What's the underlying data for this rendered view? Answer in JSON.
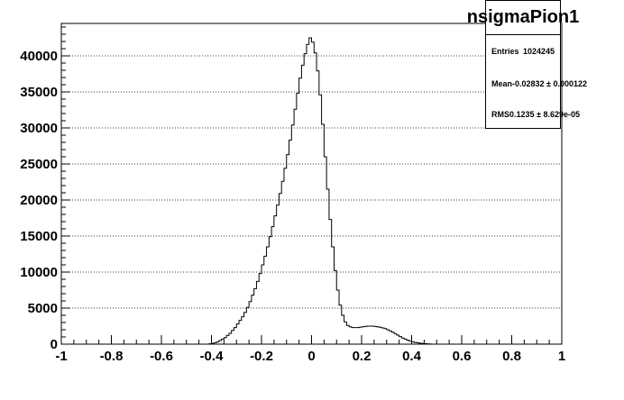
{
  "chart_data": {
    "type": "histogram",
    "title": "nsigmaPion1",
    "xlim": [
      -1,
      1
    ],
    "ylim": [
      0,
      44500
    ],
    "x_ticks": [
      "-1",
      "-0.8",
      "-0.6",
      "-0.4",
      "-0.2",
      "0",
      "0.2",
      "0.4",
      "0.6",
      "0.8",
      "1"
    ],
    "y_ticks": [
      "0",
      "5000",
      "10000",
      "15000",
      "20000",
      "25000",
      "30000",
      "35000",
      "40000"
    ],
    "grid": "horizontal dotted",
    "bin_width": 0.01,
    "bins": [
      [
        -0.41,
        40
      ],
      [
        -0.4,
        100
      ],
      [
        -0.39,
        200
      ],
      [
        -0.38,
        300
      ],
      [
        -0.37,
        500
      ],
      [
        -0.36,
        700
      ],
      [
        -0.35,
        900
      ],
      [
        -0.34,
        1200
      ],
      [
        -0.33,
        1500
      ],
      [
        -0.32,
        1900
      ],
      [
        -0.31,
        2300
      ],
      [
        -0.3,
        2800
      ],
      [
        -0.29,
        3300
      ],
      [
        -0.28,
        3800
      ],
      [
        -0.27,
        4400
      ],
      [
        -0.26,
        5100
      ],
      [
        -0.25,
        5900
      ],
      [
        -0.24,
        6800
      ],
      [
        -0.23,
        7700
      ],
      [
        -0.22,
        8700
      ],
      [
        -0.21,
        9800
      ],
      [
        -0.2,
        11000
      ],
      [
        -0.19,
        12200
      ],
      [
        -0.18,
        13500
      ],
      [
        -0.17,
        14900
      ],
      [
        -0.16,
        16300
      ],
      [
        -0.15,
        17800
      ],
      [
        -0.14,
        19300
      ],
      [
        -0.13,
        20900
      ],
      [
        -0.12,
        22600
      ],
      [
        -0.11,
        24400
      ],
      [
        -0.1,
        26300
      ],
      [
        -0.09,
        28300
      ],
      [
        -0.08,
        30400
      ],
      [
        -0.07,
        32600
      ],
      [
        -0.06,
        34800
      ],
      [
        -0.05,
        36900
      ],
      [
        -0.04,
        38700
      ],
      [
        -0.03,
        40300
      ],
      [
        -0.02,
        41600
      ],
      [
        -0.01,
        42500
      ],
      [
        0.0,
        41900
      ],
      [
        0.01,
        40400
      ],
      [
        0.02,
        37900
      ],
      [
        0.03,
        34600
      ],
      [
        0.04,
        30500
      ],
      [
        0.05,
        26000
      ],
      [
        0.06,
        21500
      ],
      [
        0.07,
        17300
      ],
      [
        0.08,
        13500
      ],
      [
        0.09,
        10200
      ],
      [
        0.1,
        7500
      ],
      [
        0.11,
        5400
      ],
      [
        0.12,
        4000
      ],
      [
        0.13,
        3100
      ],
      [
        0.14,
        2600
      ],
      [
        0.15,
        2400
      ],
      [
        0.16,
        2300
      ],
      [
        0.17,
        2300
      ],
      [
        0.18,
        2300
      ],
      [
        0.19,
        2350
      ],
      [
        0.2,
        2400
      ],
      [
        0.21,
        2450
      ],
      [
        0.22,
        2500
      ],
      [
        0.23,
        2500
      ],
      [
        0.24,
        2500
      ],
      [
        0.25,
        2450
      ],
      [
        0.26,
        2400
      ],
      [
        0.27,
        2350
      ],
      [
        0.28,
        2250
      ],
      [
        0.29,
        2150
      ],
      [
        0.3,
        2000
      ],
      [
        0.31,
        1850
      ],
      [
        0.32,
        1650
      ],
      [
        0.33,
        1450
      ],
      [
        0.34,
        1250
      ],
      [
        0.35,
        1050
      ],
      [
        0.36,
        850
      ],
      [
        0.37,
        700
      ],
      [
        0.38,
        550
      ],
      [
        0.39,
        420
      ],
      [
        0.4,
        320
      ],
      [
        0.41,
        240
      ],
      [
        0.42,
        180
      ],
      [
        0.43,
        130
      ],
      [
        0.44,
        90
      ],
      [
        0.45,
        60
      ],
      [
        0.46,
        40
      ],
      [
        0.47,
        20
      ]
    ]
  },
  "stats": {
    "title": "nsigmaPion1",
    "entries_label": "Entries",
    "entries_value": "1024245",
    "mean_label": "Mean",
    "mean_value": "-0.02832 ± 0.000122",
    "rms_label": "RMS",
    "rms_value": "0.1235 ± 8.629e-05"
  }
}
